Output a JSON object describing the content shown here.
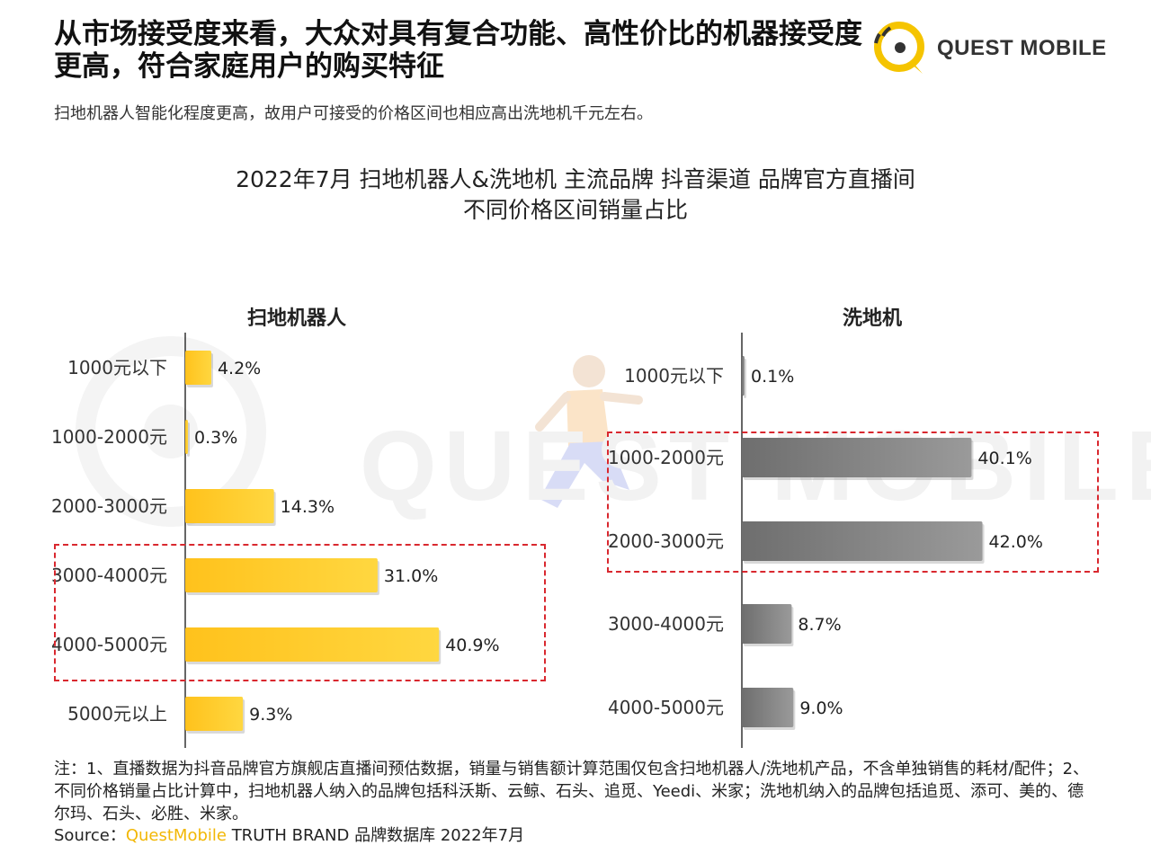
{
  "header": {
    "headline": "从市场接受度来看，大众对具有复合功能、高性价比的机器接受度更高，符合家庭用户的购买特征",
    "subtitle": "扫地机器人智能化程度更高，故用户可接受的价格区间也相应高出洗地机千元左右。",
    "logo_text": "QUEST MOBILE"
  },
  "chart_title": {
    "line1": "2022年7月 扫地机器人&洗地机 主流品牌 抖音渠道 品牌官方直播间",
    "line2": "不同价格区间销量占比"
  },
  "watermark_text": "QUEST MOBILE",
  "colors": {
    "robot_bar": "#ffc21c",
    "washer_bar": "#8a8a8a",
    "highlight": "#d9282f",
    "source_brand": "#f2b705"
  },
  "chart_data": [
    {
      "type": "bar",
      "orientation": "horizontal",
      "title": "扫地机器人",
      "categories": [
        "1000元以下",
        "1000-2000元",
        "2000-3000元",
        "3000-4000元",
        "4000-5000元",
        "5000元以上"
      ],
      "values": [
        4.2,
        0.3,
        14.3,
        31.0,
        40.9,
        9.3
      ],
      "data_labels": [
        "4.2%",
        "0.3%",
        "14.3%",
        "31.0%",
        "40.9%",
        "9.3%"
      ],
      "unit": "%",
      "highlighted_categories": [
        "3000-4000元",
        "4000-5000元"
      ]
    },
    {
      "type": "bar",
      "orientation": "horizontal",
      "title": "洗地机",
      "categories": [
        "1000元以下",
        "1000-2000元",
        "2000-3000元",
        "3000-4000元",
        "4000-5000元"
      ],
      "values": [
        0.1,
        40.1,
        42.0,
        8.7,
        9.0
      ],
      "data_labels": [
        "0.1%",
        "40.1%",
        "42.0%",
        "8.7%",
        "9.0%"
      ],
      "unit": "%",
      "highlighted_categories": [
        "1000-2000元",
        "2000-3000元"
      ]
    }
  ],
  "footer": {
    "notes": "注：1、直播数据为抖音品牌官方旗舰店直播间预估数据，销量与销售额计算范围仅包含扫地机器人/洗地机产品，不含单独销售的耗材/配件；2、不同价格销量占比计算中，扫地机器人纳入的品牌包括科沃斯、云鲸、石头、追觅、Yeedi、米家；洗地机纳入的品牌包括追觅、添可、美的、德尔玛、石头、必胜、米家。",
    "source_prefix": "Source：",
    "source_brand": "QuestMobile",
    "source_suffix": " TRUTH BRAND 品牌数据库 2022年7月"
  }
}
